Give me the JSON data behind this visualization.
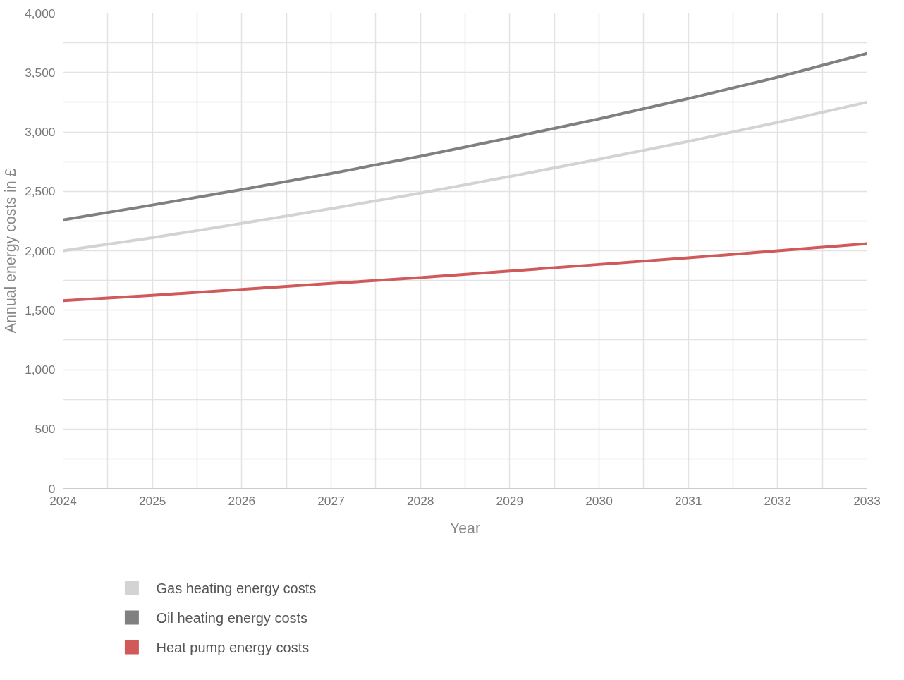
{
  "chart_data": {
    "type": "line",
    "xlabel": "Year",
    "ylabel": "Annual energy costs in £",
    "x": [
      2024,
      2025,
      2026,
      2027,
      2028,
      2029,
      2030,
      2031,
      2032,
      2033
    ],
    "series": [
      {
        "name": "Gas heating energy costs",
        "color": "#d3d3d3",
        "values": [
          2000,
          2110,
          2230,
          2355,
          2485,
          2625,
          2770,
          2920,
          3080,
          3250
        ]
      },
      {
        "name": "Oil heating energy costs",
        "color": "#808080",
        "values": [
          2260,
          2385,
          2515,
          2650,
          2795,
          2950,
          3110,
          3280,
          3460,
          3660
        ]
      },
      {
        "name": "Heat pump energy costs",
        "color": "#d05a5a",
        "values": [
          1580,
          1625,
          1675,
          1725,
          1775,
          1830,
          1885,
          1940,
          2000,
          2060
        ]
      }
    ],
    "xlim": [
      2024,
      2033
    ],
    "xticks": [
      2024,
      {
        "value": 2024.5,
        "label": null
      },
      2025,
      {
        "value": 2025.5,
        "label": null
      },
      2026,
      {
        "value": 2026.5,
        "label": null
      },
      2027,
      {
        "value": 2027.5,
        "label": null
      },
      2028,
      {
        "value": 2028.5,
        "label": null
      },
      2029,
      {
        "value": 2029.5,
        "label": null
      },
      2030,
      {
        "value": 2030.5,
        "label": null
      },
      2031,
      {
        "value": 2031.5,
        "label": null
      },
      2032,
      {
        "value": 2032.5,
        "label": null
      },
      2033
    ],
    "ylim": [
      0,
      4000
    ],
    "yticks": [
      0,
      {
        "value": 250,
        "label": null
      },
      500,
      {
        "value": 750,
        "label": null
      },
      "1,000",
      {
        "value": 1250,
        "label": null
      },
      {
        "value": 1500,
        "label": "1,500"
      },
      {
        "value": 1750,
        "label": null
      },
      {
        "value": 2000,
        "label": "2,000"
      },
      {
        "value": 2250,
        "label": null
      },
      {
        "value": 2500,
        "label": "2,500"
      },
      {
        "value": 2750,
        "label": null
      },
      {
        "value": 3000,
        "label": "3,000"
      },
      {
        "value": 3250,
        "label": null
      },
      {
        "value": 3500,
        "label": "3,500"
      },
      {
        "value": 3750,
        "label": null
      },
      {
        "value": 4000,
        "label": "4,000"
      }
    ],
    "grid": true,
    "legend": "bottom",
    "marker": "none",
    "line_style": "solid"
  }
}
